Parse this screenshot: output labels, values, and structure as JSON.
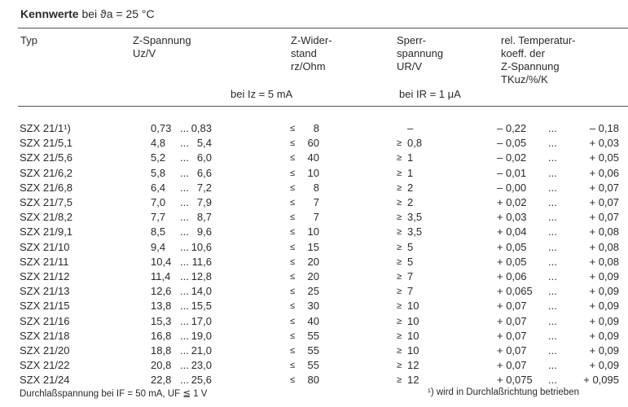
{
  "title": {
    "bold": "Kennwerte",
    "rest": "bei ϑa = 25 °C"
  },
  "headers": {
    "typ": "Typ",
    "uz": [
      "Z-Spannung",
      "Uz/V"
    ],
    "rz": [
      "Z-Wider-",
      "stand",
      "rz/Ohm"
    ],
    "ur": [
      "Sperr-",
      "spannung",
      "UR/V"
    ],
    "tk": [
      "rel. Temperatur-",
      "koeff. der",
      "Z-Spannung",
      "TKuz/%/K"
    ],
    "cond_iz": "bei Iz = 5  mA",
    "cond_ir": "bei IR = 1 μA"
  },
  "rows": [
    {
      "typ": "SZX 21/1¹)",
      "uz_min": "0,73",
      "uz_max": "0,83",
      "rz": "8",
      "ur": "–",
      "ur_sym": "",
      "tk_min": "– 0,22",
      "tk_max": "– 0,18"
    },
    {
      "typ": "SZX 21/5,1",
      "uz_min": "4,8",
      "uz_max": "5,4",
      "rz": "60",
      "ur": "0,8",
      "ur_sym": "≥",
      "tk_min": "– 0,05",
      "tk_max": "+ 0,03"
    },
    {
      "typ": "SZX 21/5,6",
      "uz_min": "5,2",
      "uz_max": "6,0",
      "rz": "40",
      "ur": "1",
      "ur_sym": "≥",
      "tk_min": "– 0,02",
      "tk_max": "+ 0,05"
    },
    {
      "typ": "SZX 21/6,2",
      "uz_min": "5,8",
      "uz_max": "6,6",
      "rz": "10",
      "ur": "1",
      "ur_sym": "≥",
      "tk_min": "– 0,01",
      "tk_max": "+ 0,06"
    },
    {
      "typ": "SZX 21/6,8",
      "uz_min": "6,4",
      "uz_max": "7,2",
      "rz": "8",
      "ur": "2",
      "ur_sym": "≥",
      "tk_min": "– 0,00",
      "tk_max": "+ 0,07"
    },
    {
      "typ": "SZX 21/7,5",
      "uz_min": "7,0",
      "uz_max": "7,9",
      "rz": "7",
      "ur": "2",
      "ur_sym": "≥",
      "tk_min": "+ 0,02",
      "tk_max": "+ 0,07"
    },
    {
      "typ": "SZX 21/8,2",
      "uz_min": "7,7",
      "uz_max": "8,7",
      "rz": "7",
      "ur": "3,5",
      "ur_sym": "≥",
      "tk_min": "+ 0,03",
      "tk_max": "+ 0,07"
    },
    {
      "typ": "SZX 21/9,1",
      "uz_min": "8,5",
      "uz_max": "9,6",
      "rz": "10",
      "ur": "3,5",
      "ur_sym": "≥",
      "tk_min": "+ 0,04",
      "tk_max": "+ 0,08"
    },
    {
      "typ": "SZX 21/10",
      "uz_min": "9,4",
      "uz_max": "10,6",
      "rz": "15",
      "ur": "5",
      "ur_sym": "≥",
      "tk_min": "+ 0,05",
      "tk_max": "+ 0,08"
    },
    {
      "typ": "SZX 21/11",
      "uz_min": "10,4",
      "uz_max": "11,6",
      "rz": "20",
      "ur": "5",
      "ur_sym": "≥",
      "tk_min": "+ 0,05",
      "tk_max": "+ 0,08"
    },
    {
      "typ": "SZX 21/12",
      "uz_min": "11,4",
      "uz_max": "12,8",
      "rz": "20",
      "ur": "7",
      "ur_sym": "≥",
      "tk_min": "+ 0,06",
      "tk_max": "+ 0,09"
    },
    {
      "typ": "SZX 21/13",
      "uz_min": "12,6",
      "uz_max": "14,0",
      "rz": "25",
      "ur": "7",
      "ur_sym": "≥",
      "tk_min": "+ 0,065",
      "tk_max": "+ 0,09"
    },
    {
      "typ": "SZX 21/15",
      "uz_min": "13,8",
      "uz_max": "15,5",
      "rz": "30",
      "ur": "10",
      "ur_sym": "≥",
      "tk_min": "+ 0,07",
      "tk_max": "+ 0,09"
    },
    {
      "typ": "SZX 21/16",
      "uz_min": "15,3",
      "uz_max": "17,0",
      "rz": "40",
      "ur": "10",
      "ur_sym": "≥",
      "tk_min": "+ 0,07",
      "tk_max": "+ 0,09"
    },
    {
      "typ": "SZX 21/18",
      "uz_min": "16,8",
      "uz_max": "19,0",
      "rz": "55",
      "ur": "10",
      "ur_sym": "≥",
      "tk_min": "+ 0,07",
      "tk_max": "+ 0,09"
    },
    {
      "typ": "SZX 21/20",
      "uz_min": "18,8",
      "uz_max": "21,0",
      "rz": "55",
      "ur": "10",
      "ur_sym": "≥",
      "tk_min": "+ 0,07",
      "tk_max": "+ 0,09"
    },
    {
      "typ": "SZX 21/22",
      "uz_min": "20,8",
      "uz_max": "23,0",
      "rz": "55",
      "ur": "12",
      "ur_sym": "≥",
      "tk_min": "+ 0,07",
      "tk_max": "+ 0,09"
    },
    {
      "typ": "SZX 21/24",
      "uz_min": "22,8",
      "uz_max": "25,6",
      "rz": "80",
      "ur": "12",
      "ur_sym": "≥",
      "tk_min": "+ 0,075",
      "tk_max": "+ 0,095"
    }
  ],
  "symbols": {
    "le": "≤",
    "dots": "..."
  },
  "footer": {
    "left": "Durchlaßspannung bei IF = 50 mA, UF ≦ 1 V",
    "right": "¹) wird in Durchlaßrichtung betrieben"
  }
}
